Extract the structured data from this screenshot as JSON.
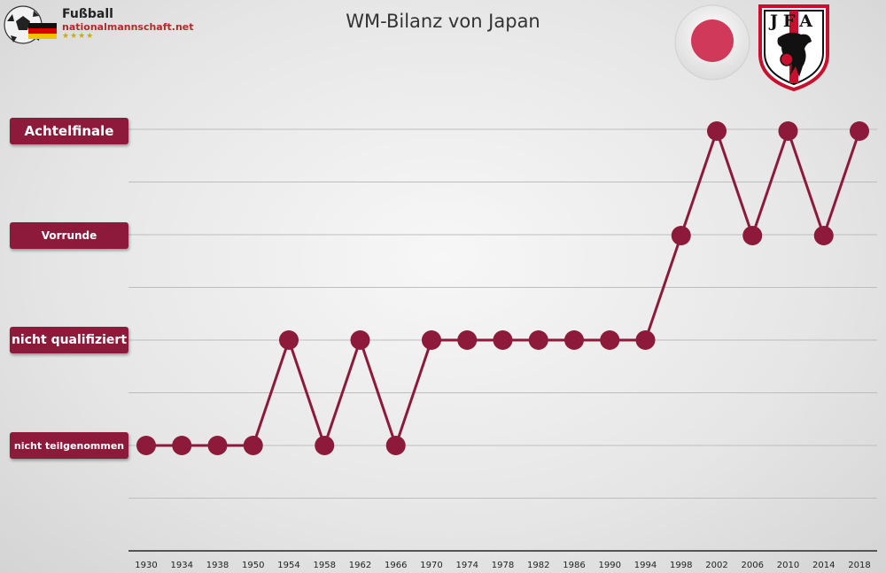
{
  "header": {
    "brand_line1": "Fußball",
    "brand_line2": "nationalmannschaft.net",
    "brand_stars": "★★★★",
    "crest_text": "JFA"
  },
  "colors": {
    "accent": "#8d1a3a",
    "grid": "#bdbdbd",
    "axis": "#555555",
    "flag_red": "#d0395a"
  },
  "chart_data": {
    "type": "line",
    "title": "WM-Bilanz von Japan",
    "xlabel": "",
    "ylabel": "",
    "categories": [
      "1930",
      "1934",
      "1938",
      "1950",
      "1954",
      "1958",
      "1962",
      "1966",
      "1970",
      "1974",
      "1978",
      "1982",
      "1986",
      "1990",
      "1994",
      "1998",
      "2002",
      "2006",
      "2010",
      "2014",
      "2018"
    ],
    "y_levels": [
      "nicht teilgenommen",
      "nicht qualifiziert",
      "Vorrunde",
      "Achtelfinale"
    ],
    "series": [
      {
        "values": [
          "nicht teilgenommen",
          "nicht teilgenommen",
          "nicht teilgenommen",
          "nicht teilgenommen",
          "nicht qualifiziert",
          "nicht teilgenommen",
          "nicht qualifiziert",
          "nicht teilgenommen",
          "nicht qualifiziert",
          "nicht qualifiziert",
          "nicht qualifiziert",
          "nicht qualifiziert",
          "nicht qualifiziert",
          "nicht qualifiziert",
          "nicht qualifiziert",
          "Vorrunde",
          "Achtelfinale",
          "Vorrunde",
          "Achtelfinale",
          "Vorrunde",
          "Achtelfinale"
        ]
      }
    ],
    "grid": true,
    "legend": "none"
  }
}
